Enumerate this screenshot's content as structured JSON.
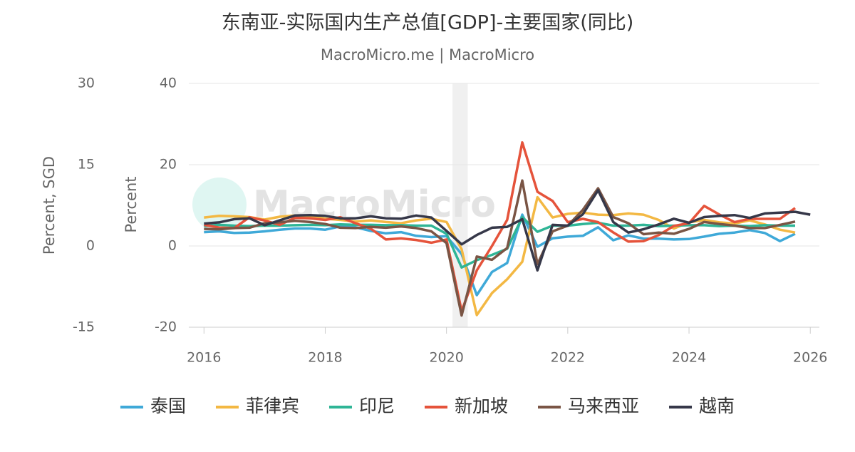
{
  "chart_data": {
    "type": "line",
    "title": "东南亚-实际国内生产总值[GDP]-主要国家(同比)",
    "subtitle": "MacroMicro.me | MacroMicro",
    "watermark": "MacroMicro",
    "y_label": "Percent",
    "y2_label": "Percent, SGD",
    "xlim": [
      2015.75,
      2026.15
    ],
    "xticks": [
      2016,
      2018,
      2020,
      2022,
      2024,
      2026
    ],
    "ylim": [
      -20,
      40
    ],
    "yticks": [
      -20,
      0,
      20,
      40
    ],
    "y2lim": [
      -15,
      30
    ],
    "y2ticks": [
      -15,
      0,
      15,
      30
    ],
    "grid": true,
    "legend": "bottom",
    "shaded_range": [
      2020.1,
      2020.35
    ],
    "x": [
      2016,
      2016.25,
      2016.5,
      2016.75,
      2017,
      2017.25,
      2017.5,
      2017.75,
      2018,
      2018.25,
      2018.5,
      2018.75,
      2019,
      2019.25,
      2019.5,
      2019.75,
      2020,
      2020.25,
      2020.5,
      2020.75,
      2021,
      2021.25,
      2021.5,
      2021.75,
      2022,
      2022.25,
      2022.5,
      2022.75,
      2023,
      2023.25,
      2023.5,
      2023.75,
      2024,
      2024.25,
      2024.5,
      2024.75,
      2025,
      2025.25,
      2025.5,
      2025.75,
      2026
    ],
    "series": [
      {
        "name": "泰国",
        "color": "#3fa9d8",
        "values": [
          3.4,
          3.6,
          3.2,
          3.3,
          3.6,
          4.0,
          4.3,
          4.3,
          4.0,
          4.8,
          4.6,
          3.7,
          3.1,
          3.4,
          2.5,
          2.2,
          2.4,
          -2.0,
          -12.1,
          -6.4,
          -4.2,
          7.7,
          -0.2,
          1.9,
          2.3,
          2.5,
          4.6,
          1.4,
          2.6,
          1.8,
          1.8,
          1.6,
          1.7,
          2.3,
          3.0,
          3.3,
          3.9,
          3.2,
          1.2,
          3.0,
          null
        ]
      },
      {
        "name": "菲律宾",
        "color": "#f3b843",
        "values": [
          7.0,
          7.4,
          7.3,
          7.1,
          6.5,
          7.2,
          7.5,
          7.3,
          6.7,
          6.4,
          6.0,
          6.3,
          5.9,
          5.6,
          6.3,
          6.7,
          5.9,
          -0.8,
          -17.0,
          -11.6,
          -8.2,
          -3.9,
          12.0,
          7.0,
          7.9,
          8.2,
          7.7,
          7.6,
          8.0,
          7.7,
          6.4,
          4.3,
          5.8,
          6.4,
          5.8,
          5.5,
          6.3,
          5.3,
          4.0,
          3.3,
          null
        ]
      },
      {
        "name": "印尼",
        "color": "#2fb596",
        "values": [
          4.9,
          5.2,
          5.0,
          4.9,
          5.0,
          5.0,
          5.1,
          5.2,
          5.1,
          5.3,
          5.2,
          5.2,
          5.1,
          5.1,
          5.0,
          5.0,
          3.0,
          -5.3,
          -3.5,
          -2.2,
          -0.7,
          7.1,
          3.5,
          5.0,
          5.0,
          5.4,
          5.7,
          5.0,
          5.0,
          5.2,
          4.9,
          5.0,
          5.1,
          5.1,
          4.9,
          5.0,
          4.9,
          5.1,
          5.0,
          5.0,
          null
        ]
      },
      {
        "name": "新加坡",
        "color": "#e5533b",
        "axis": "y2",
        "values": [
          3.9,
          3.4,
          3.3,
          5.3,
          4.7,
          3.9,
          5.2,
          5.1,
          4.8,
          5.3,
          4.2,
          3.2,
          1.2,
          1.4,
          1.1,
          0.6,
          1.2,
          -12.0,
          -4.5,
          0.0,
          4.8,
          19.1,
          10.0,
          8.3,
          4.4,
          5.0,
          4.4,
          2.5,
          0.8,
          0.9,
          2.0,
          3.7,
          4.2,
          7.4,
          5.8,
          4.4,
          5.0,
          5.0,
          5.0,
          7.0,
          null
        ]
      },
      {
        "name": "马来西亚",
        "color": "#7a5545",
        "values": [
          4.2,
          4.1,
          4.4,
          4.5,
          5.6,
          5.8,
          6.2,
          5.9,
          5.4,
          4.5,
          4.4,
          4.7,
          4.5,
          4.8,
          4.4,
          3.6,
          0.7,
          -17.1,
          -2.6,
          -3.4,
          -0.5,
          16.1,
          -4.5,
          3.6,
          5.0,
          8.9,
          14.2,
          7.1,
          5.6,
          2.9,
          3.3,
          3.0,
          4.2,
          5.9,
          5.4,
          5.0,
          4.4,
          4.4,
          5.2,
          6.0,
          null
        ]
      },
      {
        "name": "越南",
        "color": "#363849",
        "values": [
          5.5,
          5.8,
          6.6,
          6.8,
          5.1,
          6.3,
          7.5,
          7.6,
          7.4,
          6.8,
          6.8,
          7.3,
          6.8,
          6.7,
          7.5,
          7.0,
          3.7,
          0.4,
          2.7,
          4.5,
          4.7,
          6.6,
          -6.0,
          5.2,
          5.0,
          7.8,
          13.7,
          5.9,
          3.3,
          4.1,
          5.3,
          6.7,
          5.7,
          7.1,
          7.4,
          7.6,
          6.9,
          8.0,
          8.2,
          8.4,
          7.7
        ]
      }
    ]
  }
}
